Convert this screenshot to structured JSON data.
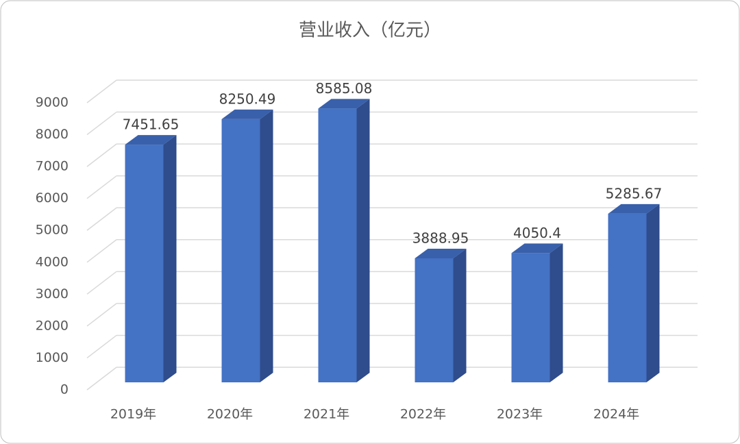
{
  "chart_data": {
    "type": "bar3d",
    "title": "营业收入（亿元）",
    "categories": [
      "2019年",
      "2020年",
      "2021年",
      "2022年",
      "2023年",
      "2024年"
    ],
    "values": [
      7451.65,
      8250.49,
      8585.08,
      3888.95,
      4050.4,
      5285.67
    ],
    "color": "#4472c4",
    "ylim": [
      0,
      9000
    ],
    "yticks": [
      0,
      1000,
      2000,
      3000,
      4000,
      5000,
      6000,
      7000,
      8000,
      9000
    ],
    "grid": true
  }
}
